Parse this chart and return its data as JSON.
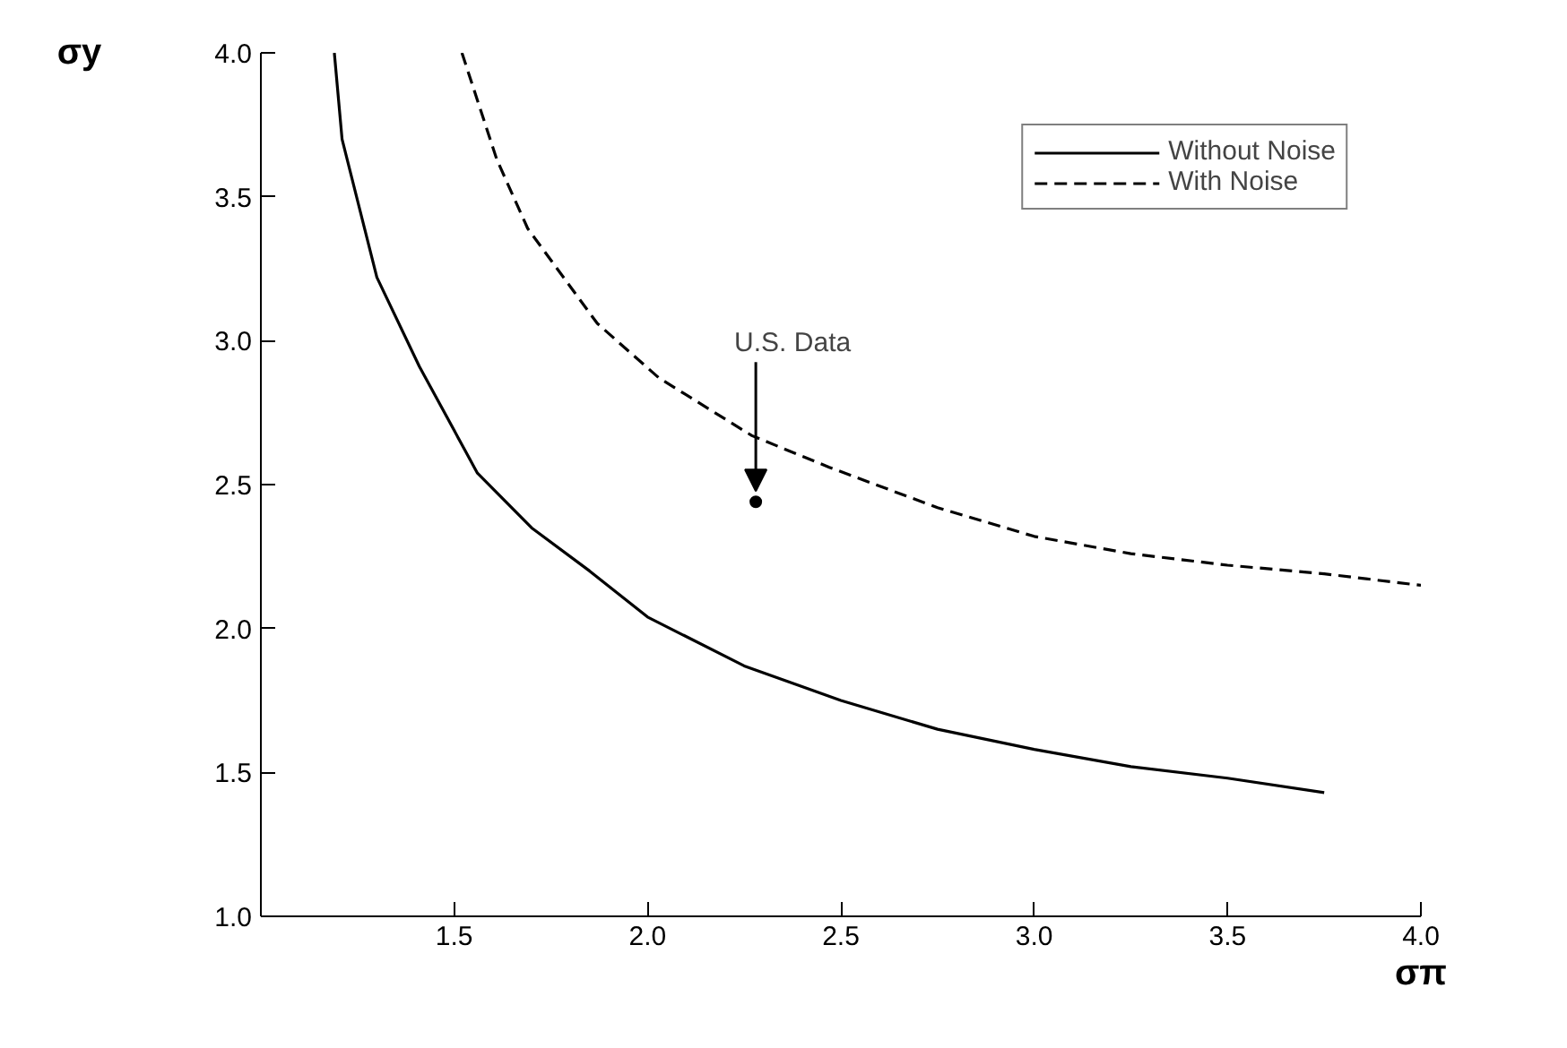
{
  "chart_data": {
    "type": "line",
    "xlabel": "σπ",
    "ylabel": "σy",
    "xlim": [
      1.0,
      4.0
    ],
    "ylim": [
      1.0,
      4.0
    ],
    "xticks": [
      1.5,
      {
        "value": 2,
        "label": "2.0"
      },
      2.5,
      {
        "value": 3,
        "label": "3.0"
      },
      3.5,
      {
        "value": 4,
        "label": "4.0"
      }
    ],
    "yticks": [
      {
        "value": 1,
        "label": "1.0"
      },
      1.5,
      {
        "value": 2,
        "label": "2.0"
      },
      2.5,
      {
        "value": 3,
        "label": "3.0"
      },
      3.5,
      {
        "value": 4,
        "label": "4.0"
      }
    ],
    "grid": false,
    "legend": "top right",
    "series": [
      {
        "name": "Without Noise",
        "color": "#000000",
        "line_style": "solid",
        "x": [
          1.19,
          1.21,
          1.3,
          1.41,
          1.56,
          1.7,
          1.85,
          2.0,
          2.25,
          2.5,
          2.75,
          3.0,
          3.25,
          3.5,
          3.75
        ],
        "values": [
          4.0,
          3.7,
          3.22,
          2.91,
          2.54,
          2.35,
          2.2,
          2.04,
          1.87,
          1.75,
          1.65,
          1.58,
          1.52,
          1.48,
          1.43
        ]
      },
      {
        "name": "With Noise",
        "color": "#000000",
        "line_style": "dashed",
        "x": [
          1.52,
          1.61,
          1.69,
          1.87,
          2.03,
          2.27,
          2.47,
          2.75,
          3.0,
          3.25,
          3.5,
          3.75,
          4.0
        ],
        "values": [
          4.0,
          3.63,
          3.39,
          3.06,
          2.87,
          2.67,
          2.56,
          2.42,
          2.32,
          2.26,
          2.22,
          2.19,
          2.15
        ]
      },
      {
        "type": "scatter",
        "marker": "circle",
        "color": "#000000",
        "x": [
          2.28
        ],
        "values": [
          2.44
        ]
      }
    ],
    "annotations": [
      {
        "text": "U.S. Data",
        "x": 2.28,
        "y": 2.44
      }
    ]
  }
}
